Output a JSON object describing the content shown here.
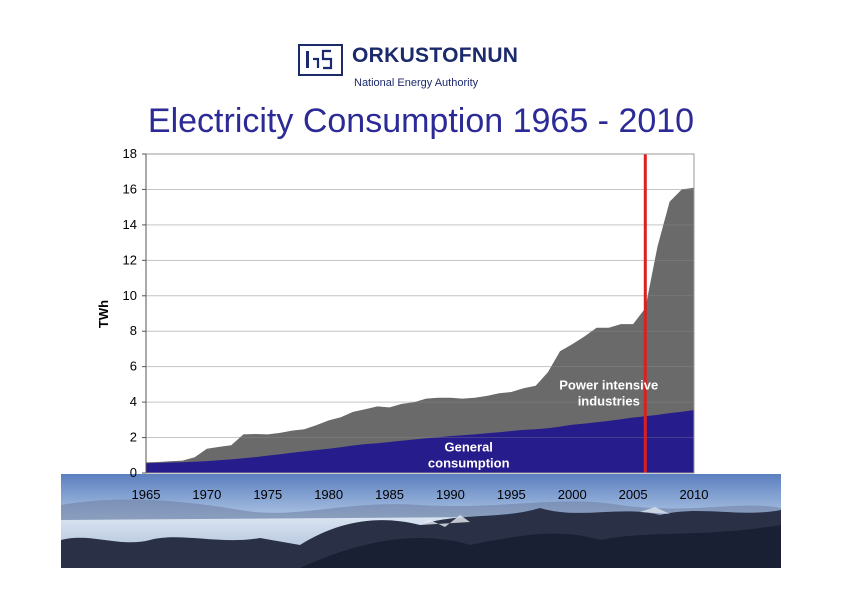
{
  "logo": {
    "name": "ORKUSTOFNUN",
    "subtitle": "National Energy Authority"
  },
  "colors": {
    "general": "#261c8c",
    "industry": "#6a6a6a",
    "marker": "#dd1f1f",
    "title": "#2b2a96"
  },
  "chart_data": {
    "type": "area",
    "title": "Electricity Consumption 1965 - 2010",
    "xlabel": "",
    "ylabel": "TWh",
    "xlim": [
      1965,
      2010
    ],
    "ylim": [
      0,
      18
    ],
    "yticks": [
      0,
      2,
      4,
      6,
      8,
      10,
      12,
      14,
      16,
      18
    ],
    "xticks": [
      1965,
      1970,
      1975,
      1980,
      1985,
      1990,
      1995,
      2000,
      2005,
      2010
    ],
    "grid": true,
    "marker_year": 2006,
    "x": [
      1965,
      1966,
      1967,
      1968,
      1969,
      1970,
      1971,
      1972,
      1973,
      1974,
      1975,
      1976,
      1977,
      1978,
      1979,
      1980,
      1981,
      1982,
      1983,
      1984,
      1985,
      1986,
      1987,
      1988,
      1989,
      1990,
      1991,
      1992,
      1993,
      1994,
      1995,
      1996,
      1997,
      1998,
      1999,
      2000,
      2001,
      2002,
      2003,
      2004,
      2005,
      2006,
      2007,
      2008,
      2009,
      2010
    ],
    "series": [
      {
        "name": "General consumption",
        "values": [
          0.55,
          0.57,
          0.59,
          0.61,
          0.64,
          0.67,
          0.72,
          0.77,
          0.83,
          0.9,
          0.98,
          1.06,
          1.14,
          1.22,
          1.3,
          1.37,
          1.45,
          1.55,
          1.63,
          1.68,
          1.75,
          1.82,
          1.89,
          1.96,
          2.02,
          2.08,
          2.13,
          2.18,
          2.24,
          2.3,
          2.37,
          2.43,
          2.47,
          2.53,
          2.62,
          2.72,
          2.79,
          2.86,
          2.94,
          3.03,
          3.13,
          3.2,
          3.28,
          3.38,
          3.46,
          3.55
        ]
      },
      {
        "name": "Power intensive industries",
        "values": [
          0.05,
          0.05,
          0.07,
          0.09,
          0.25,
          0.7,
          0.75,
          0.8,
          1.35,
          1.3,
          1.2,
          1.2,
          1.25,
          1.25,
          1.4,
          1.6,
          1.7,
          1.9,
          1.97,
          2.08,
          1.95,
          2.08,
          2.1,
          2.24,
          2.23,
          2.17,
          2.07,
          2.07,
          2.11,
          2.2,
          2.2,
          2.35,
          2.45,
          3.15,
          4.25,
          4.55,
          4.91,
          5.34,
          5.26,
          5.37,
          5.27,
          6.1,
          9.5,
          11.92,
          12.54,
          12.55
        ]
      }
    ],
    "annotations": [
      {
        "text": "Power intensive industries",
        "x": 2003,
        "y": 4.7
      },
      {
        "text": "General consumption",
        "x": 1991.5,
        "y": 1.2
      }
    ]
  }
}
